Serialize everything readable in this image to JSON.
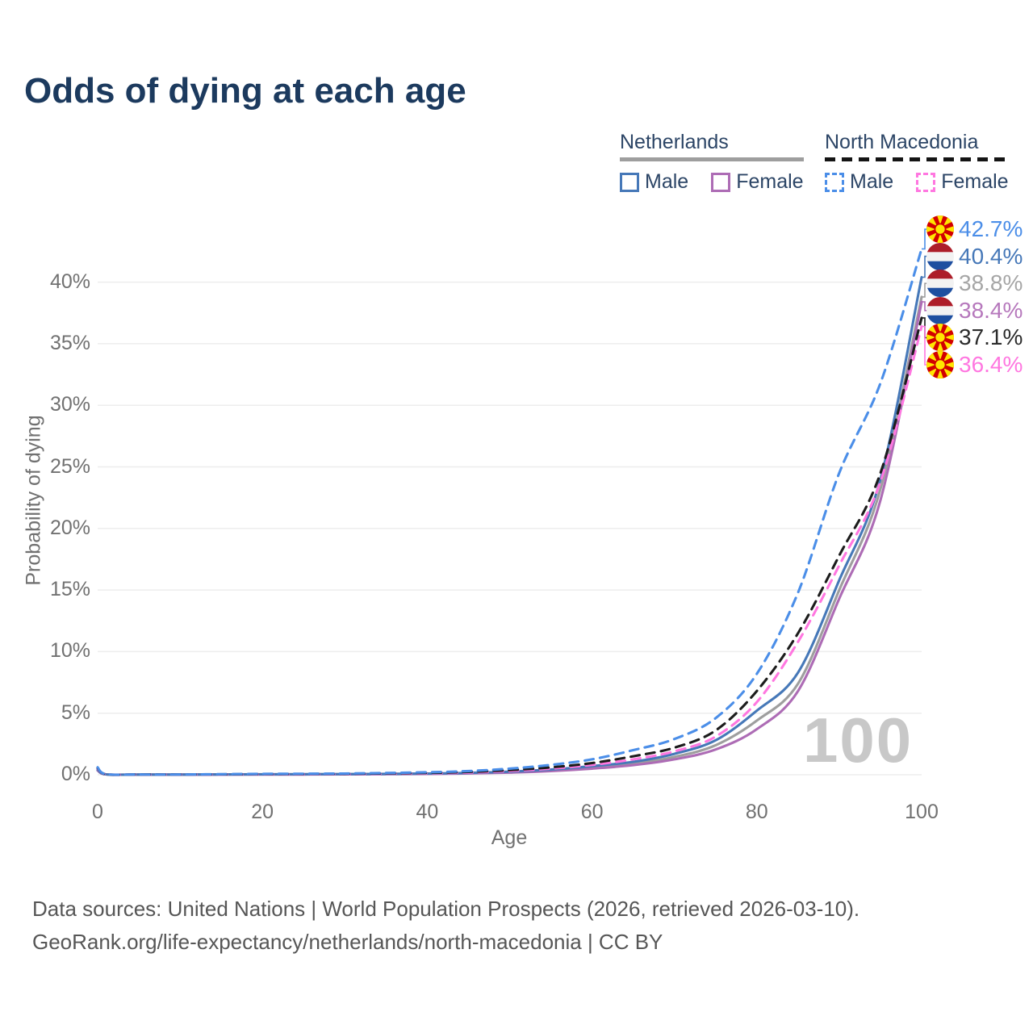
{
  "title": "Odds of dying at each age",
  "legend": {
    "groups": [
      {
        "name": "Netherlands",
        "line_style": "solid",
        "underline_color": "#9e9e9e",
        "items": [
          {
            "label": "Male",
            "color": "#4678b8",
            "dashed": false
          },
          {
            "label": "Female",
            "color": "#ad6cb5",
            "dashed": false
          }
        ]
      },
      {
        "name": "North Macedonia",
        "line_style": "dashed",
        "underline_color": "#141414",
        "items": [
          {
            "label": "Male",
            "color": "#4b8ee8",
            "dashed": true
          },
          {
            "label": "Female",
            "color": "#ff77e0",
            "dashed": true
          }
        ]
      }
    ]
  },
  "y_axis": {
    "label": "Probability of dying",
    "ticks": [
      "0%",
      "5%",
      "10%",
      "15%",
      "20%",
      "25%",
      "30%",
      "35%",
      "40%"
    ]
  },
  "x_axis": {
    "label": "Age",
    "ticks": [
      "0",
      "20",
      "40",
      "60",
      "80",
      "100"
    ]
  },
  "watermark": "100",
  "end_labels": [
    {
      "value": "42.7%",
      "color": "#4b8ee8",
      "flag": "mk",
      "flag_href": "#sym-flag-mk",
      "series_index": 3
    },
    {
      "value": "40.4%",
      "color": "#4678b8",
      "flag": "nl",
      "flag_href": "#sym-flag-nl",
      "series_index": 0
    },
    {
      "value": "38.8%",
      "color": "#a6a6a6",
      "flag": "nl",
      "flag_href": "#sym-flag-nl",
      "series_index": 2
    },
    {
      "value": "38.4%",
      "color": "#b678bc",
      "flag": "nl",
      "flag_href": "#sym-flag-nl",
      "series_index": 1
    },
    {
      "value": "37.1%",
      "color": "#2b2b2b",
      "flag": "mk",
      "flag_href": "#sym-flag-mk",
      "series_index": 4
    },
    {
      "value": "36.4%",
      "color": "#ff77e0",
      "flag": "mk",
      "flag_href": "#sym-flag-mk",
      "series_index": 5
    }
  ],
  "footer": {
    "line1": "Data sources: United Nations | World Population Prospects (2026, retrieved 2026-03-10).",
    "line2": "GeoRank.org/life-expectancy/netherlands/north-macedonia | CC BY"
  },
  "chart_data": {
    "type": "line",
    "title": "Odds of dying at each age",
    "xlabel": "Age",
    "ylabel": "Probability of dying",
    "unit": "percent",
    "xlim": [
      0,
      100
    ],
    "ylim": [
      0,
      45
    ],
    "grid": "horizontal",
    "legend_position": "top-right",
    "x": [
      0,
      1,
      5,
      10,
      20,
      30,
      40,
      45,
      50,
      55,
      60,
      65,
      70,
      75,
      80,
      85,
      90,
      95,
      100
    ],
    "series": [
      {
        "name": "Netherlands Male",
        "country": "Netherlands",
        "sex": "male",
        "color": "#4678b8",
        "dash": "solid",
        "end_value": 40.4,
        "values_pct": [
          0.4,
          0.03,
          0.01,
          0.01,
          0.04,
          0.05,
          0.1,
          0.15,
          0.25,
          0.42,
          0.7,
          1.05,
          1.7,
          2.8,
          5.2,
          8.3,
          15.8,
          24.0,
          40.4
        ]
      },
      {
        "name": "Netherlands Female",
        "country": "Netherlands",
        "sex": "female",
        "color": "#ad6cb5",
        "dash": "solid",
        "end_value": 38.4,
        "values_pct": [
          0.35,
          0.03,
          0.01,
          0.01,
          0.02,
          0.03,
          0.07,
          0.11,
          0.18,
          0.3,
          0.5,
          0.78,
          1.25,
          2.05,
          3.7,
          6.8,
          14.3,
          22.3,
          38.4
        ]
      },
      {
        "name": "Netherlands Both sexes",
        "country": "Netherlands",
        "sex": "both",
        "color": "#9e9e9e",
        "dash": "solid",
        "end_value": 38.8,
        "values_pct": [
          0.38,
          0.03,
          0.01,
          0.01,
          0.03,
          0.04,
          0.08,
          0.13,
          0.21,
          0.36,
          0.6,
          0.9,
          1.45,
          2.4,
          4.4,
          7.4,
          15.0,
          23.2,
          38.8
        ]
      },
      {
        "name": "North Macedonia Male",
        "country": "North Macedonia",
        "sex": "male",
        "color": "#4b8ee8",
        "dash": "dashed",
        "end_value": 42.7,
        "values_pct": [
          0.6,
          0.05,
          0.02,
          0.02,
          0.07,
          0.1,
          0.2,
          0.3,
          0.5,
          0.8,
          1.25,
          2.0,
          2.9,
          4.6,
          8.2,
          14.8,
          24.5,
          31.8,
          42.7
        ]
      },
      {
        "name": "North Macedonia Both sexes",
        "country": "North Macedonia",
        "sex": "both",
        "color": "#1c1c1c",
        "dash": "dashed",
        "end_value": 37.1,
        "values_pct": [
          0.55,
          0.04,
          0.02,
          0.02,
          0.05,
          0.08,
          0.15,
          0.23,
          0.38,
          0.6,
          0.95,
          1.5,
          2.2,
          3.6,
          6.8,
          11.5,
          17.8,
          24.5,
          37.1
        ]
      },
      {
        "name": "North Macedonia Female",
        "country": "North Macedonia",
        "sex": "female",
        "color": "#ff77e0",
        "dash": "dashed",
        "end_value": 36.4,
        "values_pct": [
          0.5,
          0.04,
          0.01,
          0.01,
          0.04,
          0.06,
          0.12,
          0.18,
          0.3,
          0.5,
          0.8,
          1.25,
          1.9,
          3.1,
          5.9,
          10.8,
          17.0,
          23.8,
          36.4
        ]
      }
    ],
    "draw_order": [
      2,
      1,
      0,
      5,
      4,
      3
    ]
  }
}
